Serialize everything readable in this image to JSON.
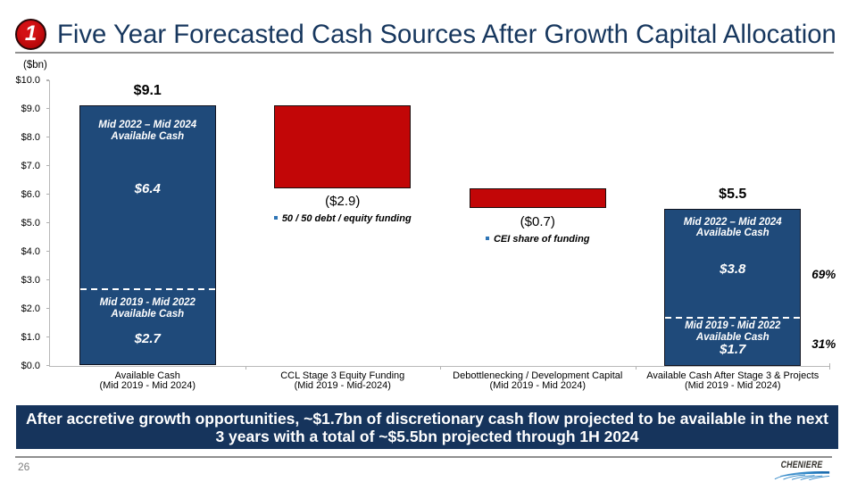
{
  "header": {
    "badge": "1",
    "title": "Five Year Forecasted Cash Sources After Growth Capital Allocation"
  },
  "chart_data": {
    "type": "bar",
    "title": "Five Year Forecasted Cash Sources After Growth Capital Allocation",
    "units_label": "($bn)",
    "ylabel": "($bn)",
    "ylim": [
      0,
      10
    ],
    "ytick_labels": [
      "$0.0",
      "$1.0",
      "$2.0",
      "$3.0",
      "$4.0",
      "$5.0",
      "$6.0",
      "$7.0",
      "$8.0",
      "$9.0",
      "$10.0"
    ],
    "grid": false,
    "bars": [
      {
        "category": [
          "Available Cash",
          "(Mid 2019 - Mid 2024)"
        ],
        "color": "blue",
        "base": 0,
        "top": 9.1,
        "total_label": "$9.1",
        "divider": 2.7,
        "upper": {
          "title": [
            "Mid 2022 – Mid 2024",
            "Available Cash"
          ],
          "value": 6.4,
          "value_label": "$6.4"
        },
        "lower": {
          "title": [
            "Mid 2019 - Mid 2022",
            "Available Cash"
          ],
          "value": 2.7,
          "value_label": "$2.7"
        }
      },
      {
        "category": [
          "CCL Stage 3 Equity Funding",
          "(Mid 2019 - Mid-2024)"
        ],
        "color": "red",
        "base": 6.2,
        "top": 9.1,
        "value": -2.9,
        "value_label": "($2.9)",
        "note": "50 / 50 debt / equity funding"
      },
      {
        "category": [
          "Debottlenecking / Development Capital",
          "(Mid 2019 - Mid 2024)"
        ],
        "color": "red",
        "base": 5.5,
        "top": 6.2,
        "value": -0.7,
        "value_label": "($0.7)",
        "note": "CEI share of funding"
      },
      {
        "category": [
          "Available Cash After Stage 3 & Projects",
          "(Mid 2019 - Mid 2024)"
        ],
        "color": "blue",
        "base": 0,
        "top": 5.5,
        "total_label": "$5.5",
        "divider": 1.7,
        "upper": {
          "title": [
            "Mid 2022 – Mid 2024",
            "Available Cash"
          ],
          "value": 3.8,
          "value_label": "$3.8",
          "pct_label": "69%"
        },
        "lower": {
          "title": [
            "Mid 2019 - Mid 2022",
            "Available Cash"
          ],
          "value": 1.7,
          "value_label": "$1.7",
          "pct_label": "31%"
        }
      }
    ]
  },
  "banner": {
    "line1": "After accretive growth opportunities, ~$1.7bn of discretionary cash flow projected to be available in the next",
    "line2": "3 years with a total of ~$5.5bn projected through 1H 2024"
  },
  "footer": {
    "page_number": "26",
    "logo_text": "CHENIERE"
  },
  "colors": {
    "bar_blue": "#1f4a7a",
    "bar_red": "#c20607",
    "banner_navy": "#16345c",
    "title_navy": "#1a3a68",
    "badge_red": "#c00a0c",
    "bullet_blue": "#2e75b6",
    "logo_wave_blue": "#1b75bc"
  }
}
